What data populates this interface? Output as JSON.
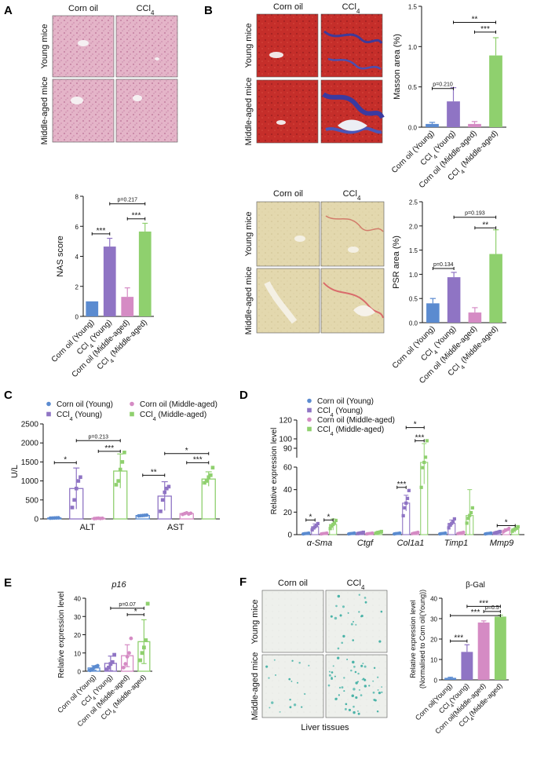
{
  "colors": {
    "corn_young": "#5b8bd0",
    "ccl4_young": "#8f74c4",
    "corn_mid": "#d58bc4",
    "ccl4_mid": "#8fd06e",
    "he": "#e8b8cc",
    "masson": "#c8302c",
    "psr": "#e2d7ad",
    "gal": "#eef0ec"
  },
  "panels": {
    "A": {
      "label": "A",
      "col1": "Corn oil",
      "col2": "CCl",
      "sub": "4",
      "row1": "Young mice",
      "row2": "Middle-aged mice"
    },
    "B": {
      "label": "B",
      "col1": "Corn oil",
      "col2": "CCl",
      "sub": "4",
      "row1": "Young mice",
      "row2": "Middle-aged mice"
    },
    "PSR": {
      "col1": "Corn oil",
      "col2": "CCl",
      "sub": "4",
      "row1": "Young mice",
      "row2": "Middle-aged mice"
    },
    "C": {
      "label": "C"
    },
    "D": {
      "label": "D"
    },
    "E": {
      "label": "E"
    },
    "F": {
      "label": "F",
      "col1": "Corn oil",
      "col2": "CCl",
      "sub": "4",
      "row1": "Young mice",
      "row2": "Middle-aged mice",
      "caption": "Liver tissues"
    }
  },
  "group_labels": {
    "standard": [
      "Corn oil (Young)",
      "CCl4 (Young)",
      "Corn oil (Middle-aged)",
      "CCl4 (Middle-aged)"
    ],
    "gal": [
      "Corn oil(Young)",
      "CCl4(Young)",
      "Corn oil(Middle-aged)",
      "CCl4(Middle-aged)"
    ]
  },
  "legend": [
    "Corn oil (Young)",
    "CCl4 (Young)",
    "Corn oil (Middle-aged)",
    "CCl4 (Middle-aged)"
  ],
  "chart_data": [
    {
      "id": "masson",
      "type": "bar",
      "ylabel": "Masson area (%)",
      "ylim": [
        0,
        1.5
      ],
      "ticks": [
        0,
        0.5,
        1.0,
        1.5
      ],
      "tick_labels": [
        "0.0",
        "0.5",
        "1.0",
        "1.5"
      ],
      "values": [
        0.04,
        0.32,
        0.04,
        0.89
      ],
      "errors": [
        0.02,
        0.17,
        0.03,
        0.22
      ],
      "annotations": [
        {
          "from": 0,
          "to": 1,
          "text": "p=0.210",
          "level": 0.48
        },
        {
          "from": 2,
          "to": 3,
          "text": "***",
          "level": 1.18
        },
        {
          "from": 1,
          "to": 3,
          "text": "**",
          "level": 1.3
        }
      ]
    },
    {
      "id": "nas",
      "type": "bar",
      "ylabel": "NAS score",
      "ylim": [
        0,
        8
      ],
      "ticks": [
        0,
        2,
        4,
        6,
        8
      ],
      "tick_labels": [
        "0",
        "2",
        "4",
        "6",
        "8"
      ],
      "values": [
        1.0,
        4.65,
        1.3,
        5.65
      ],
      "errors": [
        0,
        0.55,
        0.6,
        0.55
      ],
      "annotations": [
        {
          "from": 0,
          "to": 1,
          "text": "***",
          "level": 5.5
        },
        {
          "from": 2,
          "to": 3,
          "text": "***",
          "level": 6.5
        },
        {
          "from": 1,
          "to": 3,
          "text": "p=0.217",
          "level": 7.5
        }
      ]
    },
    {
      "id": "psr",
      "type": "bar",
      "ylabel": "PSR area (%)",
      "ylim": [
        0,
        2.5
      ],
      "ticks": [
        0,
        0.5,
        1.0,
        1.5,
        2.0,
        2.5
      ],
      "tick_labels": [
        "0.0",
        "0.5",
        "1.0",
        "1.5",
        "2.0",
        "2.5"
      ],
      "values": [
        0.4,
        0.94,
        0.21,
        1.42
      ],
      "errors": [
        0.1,
        0.1,
        0.1,
        0.5
      ],
      "annotations": [
        {
          "from": 0,
          "to": 1,
          "text": "p=0.134",
          "level": 1.12
        },
        {
          "from": 2,
          "to": 3,
          "text": "**",
          "level": 1.96
        },
        {
          "from": 1,
          "to": 3,
          "text": "p=0.193",
          "level": 2.18
        }
      ]
    },
    {
      "id": "alt_ast",
      "type": "bar",
      "ylabel": "U/L",
      "ylim": [
        0,
        2500
      ],
      "ticks": [
        0,
        500,
        1000,
        1500,
        2000,
        2500
      ],
      "tick_labels": [
        "0",
        "500",
        "1000",
        "1500",
        "2000",
        "2500"
      ],
      "categories": [
        "ALT",
        "AST"
      ],
      "series": [
        {
          "name": "Corn oil (Young)",
          "values": [
            25,
            90
          ],
          "errors": [
            8,
            15
          ]
        },
        {
          "name": "CCl4 (Young)",
          "values": [
            800,
            600
          ],
          "errors": [
            540,
            380
          ]
        },
        {
          "name": "Corn oil (Middle-aged)",
          "values": [
            15,
            140
          ],
          "errors": [
            8,
            25
          ]
        },
        {
          "name": "CCl4 (Middle-aged)",
          "values": [
            1260,
            1050
          ],
          "errors": [
            450,
            190
          ]
        }
      ],
      "points": [
        [
          [
            20,
            22,
            25,
            28,
            30
          ],
          [
            80,
            85,
            90,
            95,
            100
          ]
        ],
        [
          [
            300,
            500,
            800,
            1000,
            1100
          ],
          [
            200,
            500,
            700,
            800,
            850
          ]
        ],
        [
          [
            10,
            15,
            20,
            12,
            18
          ],
          [
            120,
            140,
            160,
            130,
            150
          ]
        ],
        [
          [
            900,
            1000,
            1300,
            1500,
            1750
          ],
          [
            950,
            1000,
            1100,
            1150,
            1350
          ]
        ]
      ],
      "annotations": [
        {
          "cat": 0,
          "from": 0,
          "to": 1,
          "text": "*",
          "level": 1480
        },
        {
          "cat": 0,
          "from": 2,
          "to": 3,
          "text": "***",
          "level": 1780
        },
        {
          "cat": 0,
          "from": 1,
          "to": 3,
          "text": "p=0.213",
          "level": 2060
        },
        {
          "cat": 1,
          "from": 0,
          "to": 1,
          "text": "**",
          "level": 1150
        },
        {
          "cat": 1,
          "from": 2,
          "to": 3,
          "text": "***",
          "level": 1480
        },
        {
          "cat": 1,
          "from": 1,
          "to": 3,
          "text": "*",
          "level": 1720
        }
      ]
    },
    {
      "id": "gene_expr",
      "type": "bar",
      "ylabel": "Relative expression level",
      "categories": [
        "α-Sma",
        "Ctgf",
        "Col1a1",
        "Timp1",
        "Mmp9"
      ],
      "axis_break": {
        "lower": [
          0,
          60
        ],
        "upper": [
          80,
          120
        ]
      },
      "tick_labels": [
        "0",
        "20",
        "40",
        "60",
        "90",
        "100",
        "120"
      ],
      "series": [
        {
          "name": "Corn oil (Young)",
          "values": [
            1,
            1,
            1,
            1,
            1
          ],
          "errors": [
            0.3,
            0.3,
            0.3,
            0.3,
            0.3
          ]
        },
        {
          "name": "CCl4 (Young)",
          "values": [
            7,
            1.5,
            28,
            10,
            2
          ],
          "errors": [
            2.5,
            0.6,
            7,
            3,
            0.8
          ]
        },
        {
          "name": "Corn oil (Middle-aged)",
          "values": [
            1,
            1,
            1.5,
            1.5,
            4
          ],
          "errors": [
            0.5,
            0.4,
            0.6,
            0.5,
            1.2
          ]
        },
        {
          "name": "CCl4 (Middle-aged)",
          "values": [
            9,
            2,
            70,
            17,
            5
          ],
          "errors": [
            5,
            1,
            25,
            23,
            3
          ]
        }
      ],
      "annotations": [
        {
          "cat": 0,
          "from": 0,
          "to": 1,
          "text": "*",
          "level": 13
        },
        {
          "cat": 0,
          "from": 2,
          "to": 3,
          "text": "*",
          "level": 13
        },
        {
          "cat": 2,
          "from": 0,
          "to": 1,
          "text": "***",
          "level": 42
        },
        {
          "cat": 2,
          "from": 2,
          "to": 3,
          "text": "***",
          "level": 98
        },
        {
          "cat": 2,
          "from": 1,
          "to": 3,
          "text": "*",
          "level": 112
        },
        {
          "cat": 4,
          "from": 1,
          "to": 3,
          "text": "*",
          "level": 8
        }
      ]
    },
    {
      "id": "p16",
      "type": "bar",
      "title": "p16",
      "ylabel": "Relative expression level",
      "ylim": [
        0,
        40
      ],
      "ticks": [
        0,
        10,
        20,
        30,
        40
      ],
      "tick_labels": [
        "0",
        "10",
        "20",
        "30",
        "40"
      ],
      "values": [
        1.8,
        4.3,
        8.5,
        16.2
      ],
      "errors": [
        1.2,
        4,
        6,
        12
      ],
      "points": [
        [
          0.5,
          1,
          2,
          2.5,
          3
        ],
        [
          1,
          2,
          4,
          5,
          9
        ],
        [
          2,
          4,
          8,
          10,
          18
        ],
        [
          6,
          10,
          13,
          17,
          37
        ]
      ],
      "annotations": [
        {
          "from": 2,
          "to": 3,
          "text": "*",
          "level": 31
        },
        {
          "from": 1,
          "to": 3,
          "text": "p=0.07",
          "level": 34.5
        }
      ]
    },
    {
      "id": "bgal",
      "type": "bar",
      "title": "β-Gal",
      "ylabel": "Relative expression level\n(Normalised to Corn oil(Young))",
      "ylim": [
        0,
        40
      ],
      "ticks": [
        0,
        10,
        20,
        30,
        40
      ],
      "tick_labels": [
        "0",
        "10",
        "20",
        "30",
        "40"
      ],
      "values": [
        1.0,
        13.7,
        28.1,
        31.0
      ],
      "errors": [
        0.3,
        3.5,
        0.8,
        0.7
      ],
      "annotations": [
        {
          "from": 0,
          "to": 1,
          "text": "***",
          "level": 19
        },
        {
          "from": 2,
          "to": 3,
          "text": "p=0.5",
          "level": 33.5
        },
        {
          "from": 1,
          "to": 3,
          "text": "***",
          "level": 36
        },
        {
          "from": 0,
          "to": 3,
          "text": "***",
          "level": 31.5
        }
      ]
    }
  ]
}
